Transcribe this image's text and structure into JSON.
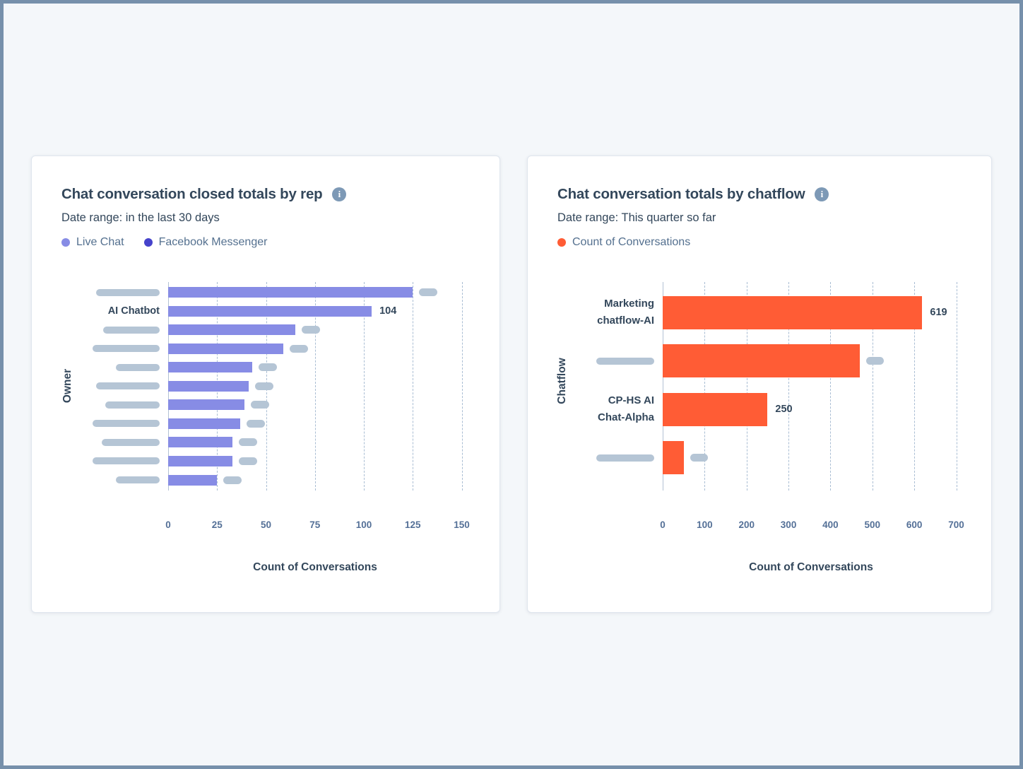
{
  "page": {
    "background": "#f4f7fa",
    "frame_border_color": "#7690ab"
  },
  "colors": {
    "live_chat_purple": "#878ce5",
    "facebook_messenger_indigo": "#4643cb",
    "conversations_orange": "#ff5c35",
    "redacted_pill": "#b5c5d5",
    "heading_text": "#33475b",
    "tick_text": "#547097"
  },
  "info_icon_glyph": "i",
  "cards": [
    {
      "title": "Chat conversation closed totals by rep",
      "date_range": "Date range: in the last 30 days",
      "legend": [
        {
          "label": "Live Chat",
          "color": "#878ce5"
        },
        {
          "label": "Facebook Messenger",
          "color": "#4643cb"
        }
      ],
      "chart_data": {
        "type": "bar",
        "orientation": "horizontal",
        "title": "Chat conversation closed totals by rep",
        "xlabel": "Count of Conversations",
        "ylabel": "Owner",
        "xlim": [
          0,
          150
        ],
        "xticks": [
          0,
          25,
          50,
          75,
          100,
          125,
          150
        ],
        "grid": "dashed-vertical",
        "series_shown": "Live Chat",
        "bar_color": "#878ce5",
        "bars": [
          {
            "label": "",
            "label_redacted": true,
            "label_pill_width": 90,
            "value": 125,
            "value_redacted": true
          },
          {
            "label": "AI Chatbot",
            "label_redacted": false,
            "value": 104,
            "value_redacted": false
          },
          {
            "label": "",
            "label_redacted": true,
            "label_pill_width": 80,
            "value": 65,
            "value_redacted": true
          },
          {
            "label": "",
            "label_redacted": true,
            "label_pill_width": 95,
            "value": 59,
            "value_redacted": true
          },
          {
            "label": "",
            "label_redacted": true,
            "label_pill_width": 62,
            "value": 43,
            "value_redacted": true
          },
          {
            "label": "",
            "label_redacted": true,
            "label_pill_width": 90,
            "value": 41,
            "value_redacted": true
          },
          {
            "label": "",
            "label_redacted": true,
            "label_pill_width": 77,
            "value": 39,
            "value_redacted": true
          },
          {
            "label": "",
            "label_redacted": true,
            "label_pill_width": 95,
            "value": 37,
            "value_redacted": true
          },
          {
            "label": "",
            "label_redacted": true,
            "label_pill_width": 82,
            "value": 33,
            "value_redacted": true
          },
          {
            "label": "",
            "label_redacted": true,
            "label_pill_width": 95,
            "value": 33,
            "value_redacted": true
          },
          {
            "label": "",
            "label_redacted": true,
            "label_pill_width": 62,
            "value": 25,
            "value_redacted": true
          }
        ]
      }
    },
    {
      "title": "Chat conversation totals by chatflow",
      "date_range": "Date range: This quarter so far",
      "legend": [
        {
          "label": "Count of Conversations",
          "color": "#ff5c35"
        }
      ],
      "chart_data": {
        "type": "bar",
        "orientation": "horizontal",
        "title": "Chat conversation totals by chatflow",
        "xlabel": "Count of Conversations",
        "ylabel": "Chatflow",
        "xlim": [
          0,
          700
        ],
        "xticks": [
          0,
          100,
          200,
          300,
          400,
          500,
          600,
          700
        ],
        "grid": "dashed-vertical",
        "series_shown": "Count of Conversations",
        "bar_color": "#ff5c35",
        "bars": [
          {
            "label": "Marketing\nchatflow-AI",
            "label_redacted": false,
            "value": 619,
            "value_redacted": false
          },
          {
            "label": "",
            "label_redacted": true,
            "label_pill_width": 82,
            "value": 470,
            "value_redacted": true
          },
          {
            "label": "CP-HS AI\nChat-Alpha",
            "label_redacted": false,
            "value": 250,
            "value_redacted": false
          },
          {
            "label": "",
            "label_redacted": true,
            "label_pill_width": 82,
            "value": 50,
            "value_redacted": true
          }
        ]
      }
    }
  ]
}
